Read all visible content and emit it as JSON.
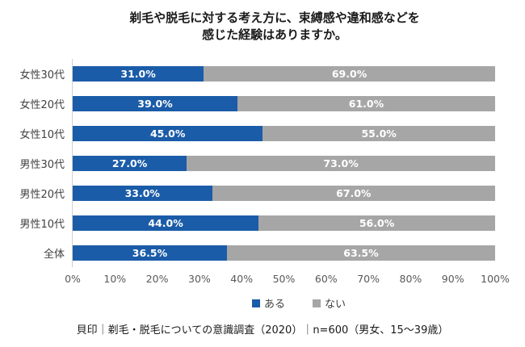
{
  "title": {
    "line1": "剃毛や脱毛に対する考え方に、束縛感や違和感などを",
    "line2": "感じた経験はありますか。"
  },
  "chart_data": {
    "type": "bar",
    "orientation": "horizontal-stacked",
    "title": "剃毛や脱毛に対する考え方に、束縛感や違和感などを感じた経験はありますか。",
    "categories": [
      "女性30代",
      "女性20代",
      "女性10代",
      "男性30代",
      "男性20代",
      "男性10代",
      "全体"
    ],
    "series": [
      {
        "name": "ある",
        "color": "#1b5ca8",
        "values": [
          31.0,
          39.0,
          45.0,
          27.0,
          33.0,
          44.0,
          36.5
        ],
        "labels": [
          "31.0%",
          "39.0%",
          "45.0%",
          "27.0%",
          "33.0%",
          "44.0%",
          "36.5%"
        ]
      },
      {
        "name": "ない",
        "color": "#a6a6a6",
        "values": [
          69.0,
          61.0,
          55.0,
          73.0,
          67.0,
          56.0,
          63.5
        ],
        "labels": [
          "69.0%",
          "61.0%",
          "55.0%",
          "73.0%",
          "67.0%",
          "56.0%",
          "63.5%"
        ]
      }
    ],
    "x_axis": {
      "min": 0,
      "max": 100,
      "ticks": [
        "0%",
        "10%",
        "20%",
        "30%",
        "40%",
        "50%",
        "60%",
        "70%",
        "80%",
        "90%",
        "100%"
      ]
    },
    "grid": false,
    "legend_position": "bottom",
    "value_label_color": "#ffffff"
  },
  "footer": {
    "text": "貝印｜剃毛・脱毛についての意識調査（2020）｜n=600（男女、15～39歳）"
  }
}
